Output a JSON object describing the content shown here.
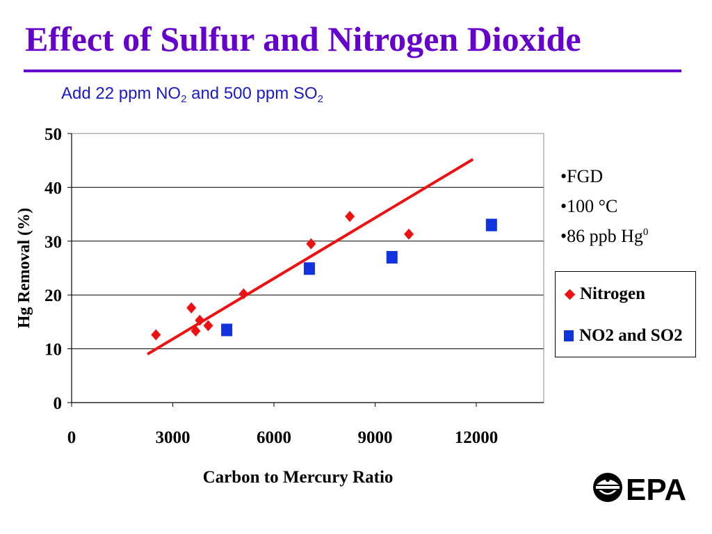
{
  "title": "Effect of Sulfur and Nitrogen Dioxide",
  "subtitle": {
    "prefix": "Add 22 ppm NO",
    "sub1": "2",
    "middle": " and 500 ppm SO",
    "sub2": "2"
  },
  "conditions": {
    "items": [
      "•FGD",
      "•100 °C"
    ],
    "hg_prefix": "•86 ppb Hg",
    "hg_sup": "0"
  },
  "colors": {
    "title": "#6600cc",
    "subtitle": "#1a1ac8",
    "nitrogen": "#ee1111",
    "no2_so2": "#1133dd",
    "trendline": "#ee1111"
  },
  "logo": {
    "text": "EPA",
    "icon": "epa-flower-icon"
  },
  "chart_data": {
    "type": "scatter",
    "xlabel": "Carbon to Mercury Ratio",
    "ylabel": "Hg Removal (%)",
    "xlim": [
      0,
      14000
    ],
    "ylim": [
      0,
      50
    ],
    "x_ticks": [
      0,
      3000,
      6000,
      9000,
      12000
    ],
    "y_ticks": [
      0,
      10,
      20,
      30,
      40,
      50
    ],
    "grid": "horizontal",
    "legend_position": "right",
    "series": [
      {
        "name": "Nitrogen",
        "marker": "diamond",
        "points": [
          [
            2500,
            12.6
          ],
          [
            3550,
            17.6
          ],
          [
            3680,
            13.3
          ],
          [
            3800,
            15.3
          ],
          [
            4050,
            14.3
          ],
          [
            5100,
            20.2
          ],
          [
            7100,
            29.5
          ],
          [
            8250,
            34.6
          ],
          [
            10000,
            31.3
          ]
        ]
      },
      {
        "name": "NO2 and SO2",
        "marker": "square",
        "points": [
          [
            4600,
            13.5
          ],
          [
            7050,
            24.9
          ],
          [
            9500,
            27.0
          ],
          [
            12450,
            33.0
          ]
        ]
      }
    ],
    "trendline": {
      "series": "Nitrogen",
      "x_start": 2250,
      "y_start": 9.0,
      "x_end": 11900,
      "y_end": 45.2
    }
  }
}
